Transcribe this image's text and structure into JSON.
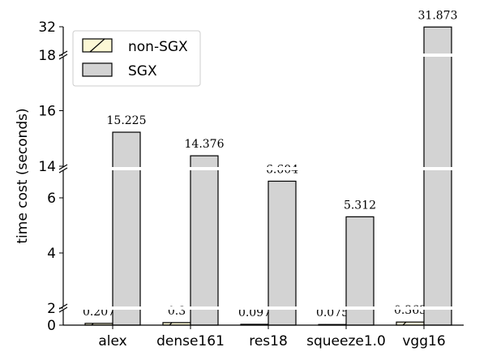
{
  "chart_data": {
    "type": "bar",
    "categories": [
      "alex",
      "dense161",
      "res18",
      "squeeze1.0",
      "vgg16"
    ],
    "series": [
      {
        "name": "non-SGX",
        "values": [
          0.207,
          0.3,
          0.097,
          0.075,
          0.363
        ],
        "labels": [
          "0.207",
          "0.3",
          "0.097",
          "0.075",
          "0.363"
        ],
        "color": "#fcf8d5",
        "hatch": "diagonal"
      },
      {
        "name": "SGX",
        "values": [
          15.225,
          14.376,
          6.604,
          5.312,
          31.873
        ],
        "labels": [
          "15.225",
          "14.376",
          "6.604",
          "5.312",
          "31.873"
        ],
        "color": "#d3d3d3",
        "hatch": "none"
      }
    ],
    "ylabel": "time cost (seconds)",
    "xlabel": "",
    "title": "",
    "broken_axis": true,
    "y_segments": [
      {
        "ylim": [
          0,
          2
        ],
        "ticks": [
          0,
          2
        ]
      },
      {
        "ylim": [
          2,
          7
        ],
        "ticks": [
          4,
          6
        ]
      },
      {
        "ylim": [
          14,
          18
        ],
        "ticks": [
          14,
          16,
          18
        ]
      },
      {
        "ylim": [
          18,
          32
        ],
        "ticks": [
          32
        ]
      }
    ],
    "legend_position": "top-left",
    "grid": false
  }
}
